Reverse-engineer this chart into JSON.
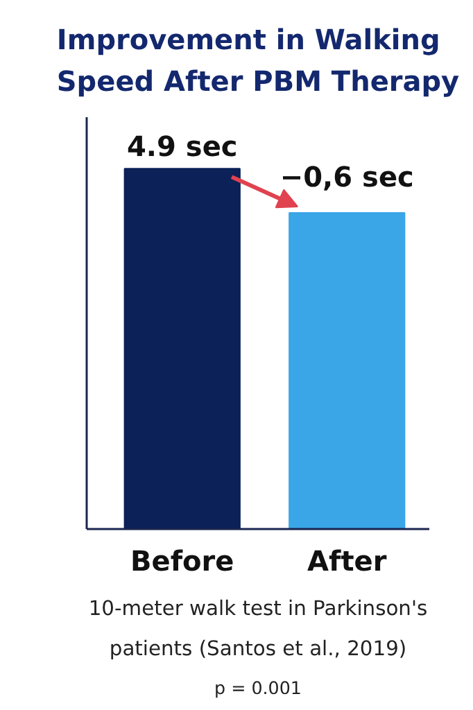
{
  "chart_data": {
    "type": "bar",
    "title": "Improvement in Walking\nSpeed After PBM Therapy",
    "categories": [
      "Before",
      "After"
    ],
    "values": [
      4.9,
      4.3
    ],
    "colors": [
      "#0b2158",
      "#3aa6e8"
    ],
    "ylim": [
      0,
      5.6
    ],
    "value_labels": [
      "4.9 sec",
      null
    ],
    "annotations": [
      {
        "text": "−0,6 sec",
        "x": "After",
        "y": 4.3
      },
      "10-meter walk test in Parkinson's",
      "patients (Santos et al., 2019)",
      "p = 0.001"
    ],
    "grid": false
  }
}
